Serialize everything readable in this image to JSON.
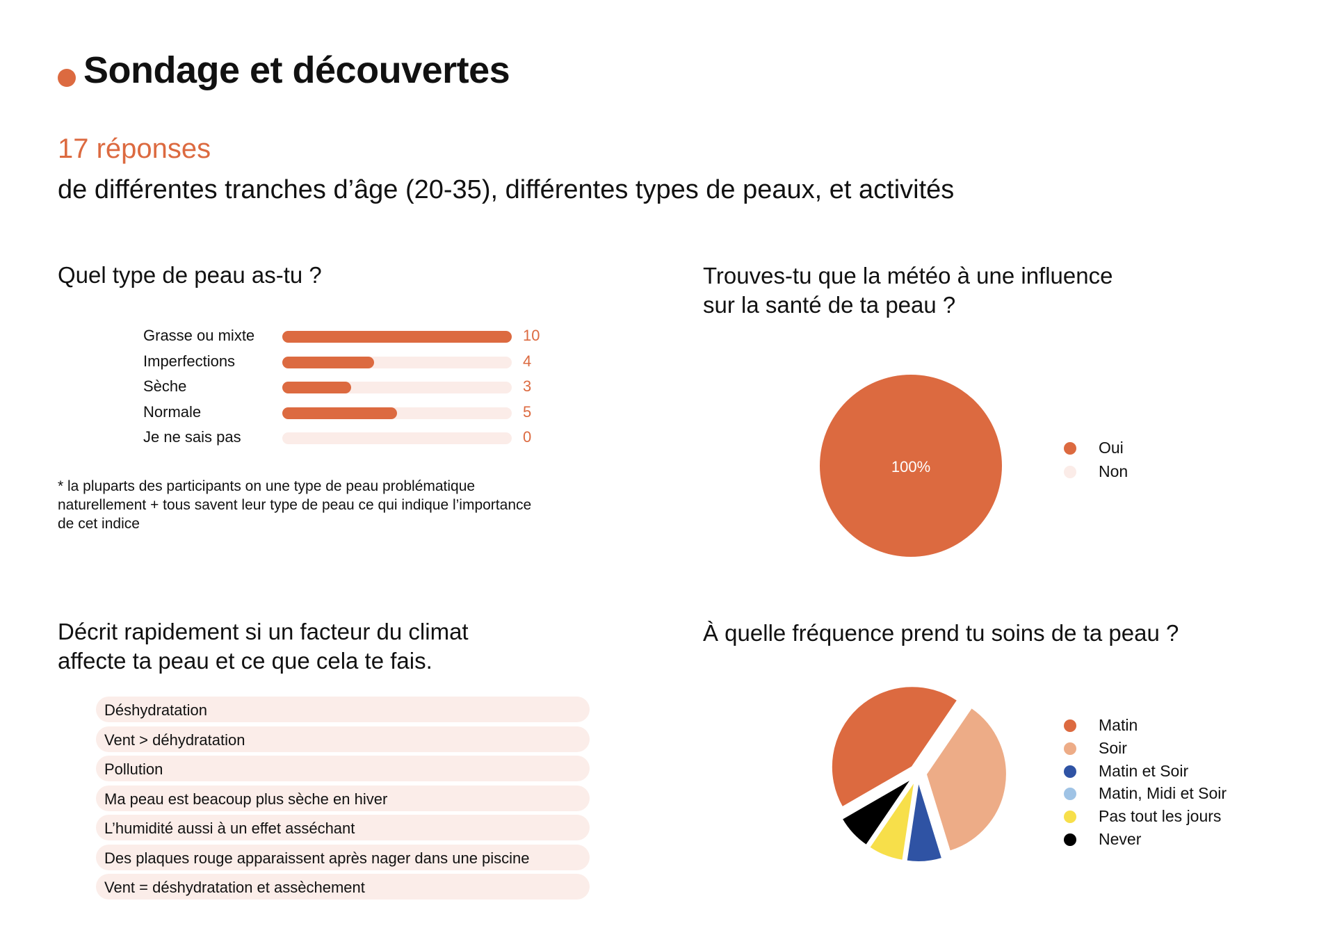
{
  "header": {
    "title": "Sondage et découvertes",
    "responses": "17 réponses",
    "subtitle": "de différentes tranches d’âge (20-35), différentes types de peaux, et activités"
  },
  "colors": {
    "accent": "#dc6a40",
    "track": "#fbece8",
    "text": "#111111"
  },
  "sections": {
    "skin_type": {
      "question": "Quel type de peau as-tu ?",
      "note": "* la pluparts des participants on une type de peau problématique naturellement + tous savent leur type de peau ce qui indique l’importance de cet indice"
    },
    "weather": {
      "question_line1": "Trouves-tu que la météo à une influence",
      "question_line2": "sur la santé de ta peau ?"
    },
    "climate": {
      "question_line1": "Décrit rapidement si un facteur du climat",
      "question_line2": "affecte ta peau et ce que cela te fais.",
      "answers": [
        "Déshydratation",
        "Vent > déhydratation",
        "Pollution",
        "Ma peau est beacoup plus sèche en hiver",
        "L’humidité aussi à un effet asséchant",
        "Des plaques rouge apparaissent après nager dans une piscine",
        "Vent = déshydratation et assèchement"
      ]
    },
    "frequency": {
      "question": "À quelle fréquence prend tu soins de ta peau ?"
    }
  },
  "chart_data": [
    {
      "type": "bar",
      "orientation": "horizontal",
      "categories": [
        "Grasse ou mixte",
        "Imperfections",
        "Sèche",
        "Normale",
        "Je ne sais pas"
      ],
      "values": [
        10,
        4,
        3,
        5,
        0
      ],
      "value_labels": [
        "10",
        "4",
        "3",
        "5",
        "0"
      ],
      "xlim": [
        0,
        10
      ],
      "color": "#dc6a40"
    },
    {
      "type": "pie",
      "labels": [
        "Oui",
        "Non"
      ],
      "values": [
        100,
        0
      ],
      "colors": [
        "#dc6a40",
        "#fbece8"
      ],
      "slice_labels": [
        "100%",
        ""
      ],
      "legend": "right"
    },
    {
      "type": "pie",
      "labels": [
        "Matin",
        "Soir",
        "Matin et Soir",
        "Matin, Midi et Soir",
        "Pas tout les jours",
        "Never"
      ],
      "values": [
        42,
        35,
        7,
        0,
        7,
        7
      ],
      "colors": [
        "#dc6a40",
        "#edac87",
        "#2f53a4",
        "#9fc3e5",
        "#f7df4a",
        "#000000"
      ],
      "exploded": true,
      "legend": "right"
    }
  ]
}
